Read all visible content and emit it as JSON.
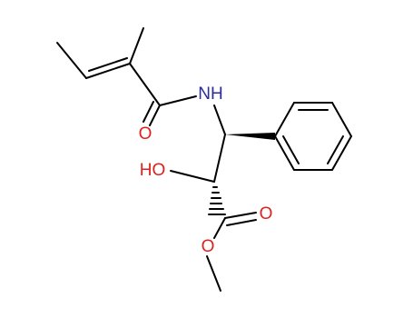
{
  "atoms": [
    {
      "label": "NH"
    },
    {
      "label": "O"
    },
    {
      "label": "HO"
    },
    {
      "label": "O"
    },
    {
      "label": "O"
    }
  ]
}
